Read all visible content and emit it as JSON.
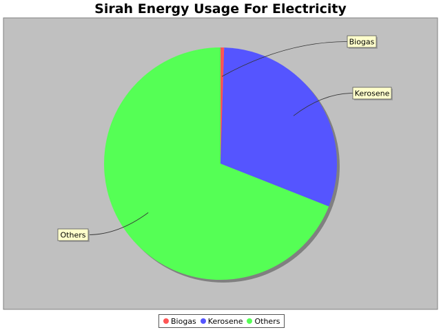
{
  "chart_data": {
    "type": "pie",
    "title": "Sirah Energy Usage For Electricity",
    "categories": [
      "Biogas",
      "Kerosene",
      "Others"
    ],
    "values": [
      0.5,
      30.5,
      69.0
    ],
    "colors": [
      "#ff5555",
      "#5555ff",
      "#55ff55"
    ],
    "background": "#c0c0c0",
    "legend": "bottom",
    "legend_entries": [
      "Biogas",
      "Kerosene",
      "Others"
    ]
  }
}
